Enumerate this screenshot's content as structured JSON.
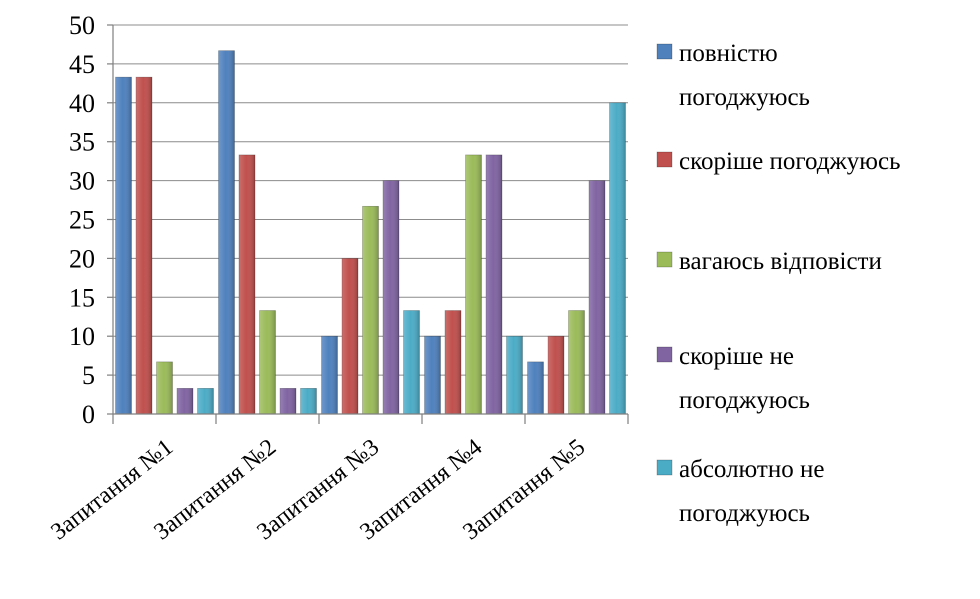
{
  "chart_data": {
    "type": "bar",
    "title": "",
    "xlabel": "",
    "ylabel": "",
    "ylim": [
      0,
      50
    ],
    "yticks": [
      0,
      5,
      10,
      15,
      20,
      25,
      30,
      35,
      40,
      45,
      50
    ],
    "grid": true,
    "legend_position": "right",
    "categories": [
      "Запитання №1",
      "Запитання №2",
      "Запитання №3",
      "Запитання №4",
      "Запитання №5"
    ],
    "series": [
      {
        "name": "повністю погоджуюсь",
        "color": "#4f81bd",
        "values": [
          43.3,
          46.7,
          10,
          10,
          6.7
        ]
      },
      {
        "name": "скоріше погоджуюсь",
        "color": "#c0504d",
        "values": [
          43.3,
          33.3,
          20,
          13.3,
          10
        ]
      },
      {
        "name": "вагаюсь відповісти",
        "color": "#9bbb59",
        "values": [
          6.7,
          13.3,
          26.7,
          33.3,
          13.3
        ]
      },
      {
        "name": "скоріше не погоджуюсь",
        "color": "#8064a2",
        "values": [
          3.3,
          3.3,
          30,
          33.3,
          30
        ]
      },
      {
        "name": "абсолютно не погоджуюсь",
        "color": "#4bacc6",
        "values": [
          3.3,
          3.3,
          13.3,
          10,
          40
        ]
      }
    ]
  },
  "legend": {
    "items": [
      {
        "lines": [
          "повністю",
          "погоджуюсь"
        ]
      },
      {
        "lines": [
          "скоріше погоджуюсь"
        ]
      },
      {
        "lines": [
          "вагаюсь відповісти"
        ]
      },
      {
        "lines": [
          "скоріше не",
          "погоджуюсь"
        ]
      },
      {
        "lines": [
          "абсолютно не",
          "погоджуюсь"
        ]
      }
    ]
  }
}
